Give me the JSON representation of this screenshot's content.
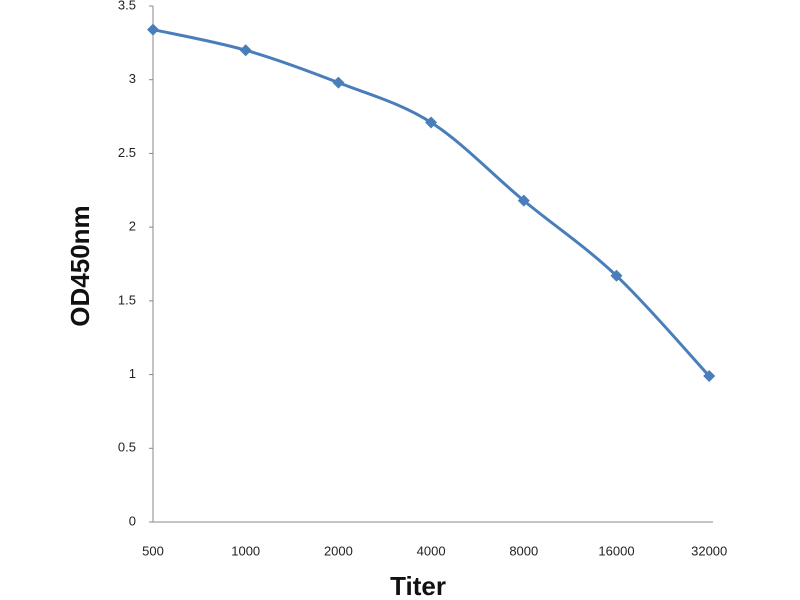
{
  "chart_data": {
    "type": "line",
    "x_label": "Titer",
    "y_label": "OD450nm",
    "categories": [
      "500",
      "1000",
      "2000",
      "4000",
      "8000",
      "16000",
      "32000"
    ],
    "series": [
      {
        "name": "OD450nm",
        "color": "#4a7ebb",
        "values": [
          3.34,
          3.2,
          2.98,
          2.71,
          2.18,
          1.67,
          0.99
        ]
      }
    ],
    "ylim": [
      0,
      3.5
    ],
    "yticks": [
      0,
      0.5,
      1,
      1.5,
      2,
      2.5,
      3,
      3.5
    ],
    "grid": false
  }
}
